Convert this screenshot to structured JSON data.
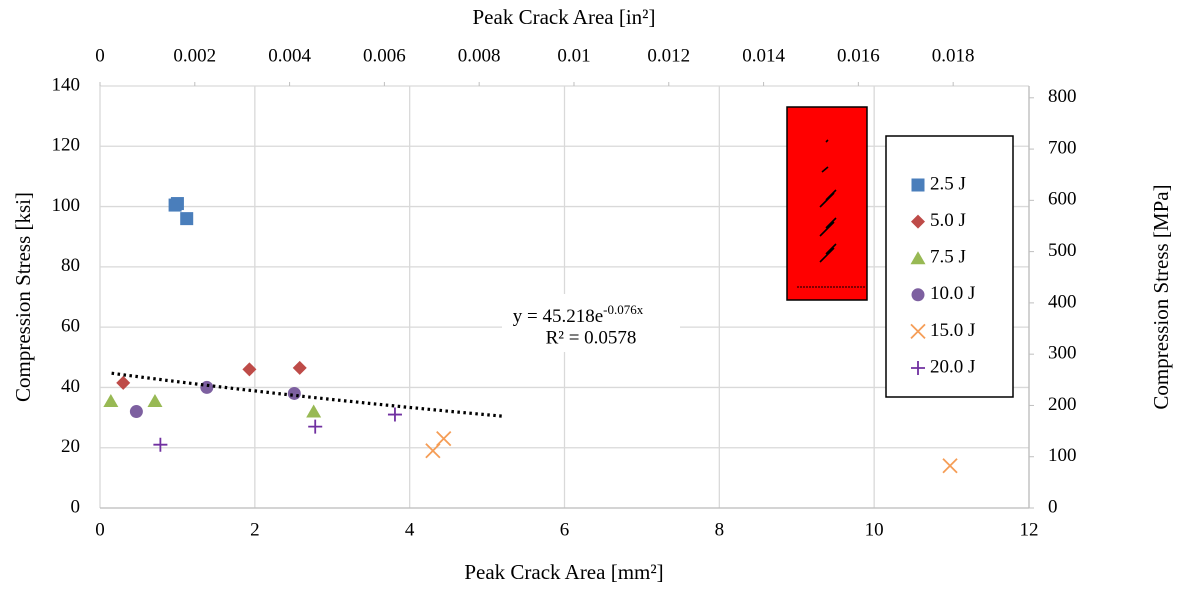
{
  "chart_data": {
    "type": "scatter",
    "x_title": "Peak Crack Area [mm²]",
    "x2_title": "Peak Crack Area [in²]",
    "y_title": "Compression Stress [ksi]",
    "y2_title": "Compression Stress [MPa]",
    "xlim": [
      0,
      12
    ],
    "xticks": [
      0,
      2,
      4,
      6,
      8,
      10,
      12
    ],
    "x2lim": [
      0,
      0.0196
    ],
    "x2ticks": [
      0,
      0.002,
      0.004,
      0.006,
      0.008,
      0.01,
      0.012,
      0.014,
      0.016,
      0.018
    ],
    "ylim": [
      0,
      140
    ],
    "yticks": [
      0,
      20,
      40,
      60,
      80,
      100,
      120,
      140
    ],
    "y2lim": [
      0,
      823
    ],
    "y2ticks": [
      0,
      100,
      200,
      300,
      400,
      500,
      600,
      700,
      800
    ],
    "grid": true,
    "legend": "right",
    "series": [
      {
        "name": "2.5 J",
        "color": "#4a7ebb",
        "marker": "square",
        "x": [
          0.97,
          1.0,
          1.12
        ],
        "values": [
          100.5,
          101,
          96
        ]
      },
      {
        "name": "5.0 J",
        "color": "#be4b48",
        "marker": "diamond",
        "x": [
          0.3,
          1.93,
          2.58
        ],
        "values": [
          41.5,
          46,
          46.5
        ]
      },
      {
        "name": "7.5 J",
        "color": "#98b954",
        "marker": "triangle",
        "x": [
          0.14,
          0.71,
          2.76
        ],
        "values": [
          35.5,
          35.5,
          32
        ]
      },
      {
        "name": "10.0 J",
        "color": "#7d60a0",
        "marker": "circle",
        "x": [
          0.47,
          1.38,
          2.51
        ],
        "values": [
          32,
          40,
          38
        ]
      },
      {
        "name": "15.0 J",
        "color": "#f59d56",
        "marker": "x",
        "x": [
          4.3,
          4.44,
          10.98
        ],
        "values": [
          19,
          23,
          14
        ]
      },
      {
        "name": "20.0 J",
        "color": "#7030a0",
        "marker": "plus",
        "x": [
          0.78,
          2.78,
          3.81
        ],
        "values": [
          21,
          27,
          31
        ]
      }
    ],
    "trendline": {
      "a": 45.218,
      "b": -0.076,
      "x_range": [
        0.15,
        5.2
      ],
      "label_prefix": "y = 45.218e",
      "label_exponent": "-0.076x",
      "r2_label": "R² = 0.0578"
    }
  }
}
